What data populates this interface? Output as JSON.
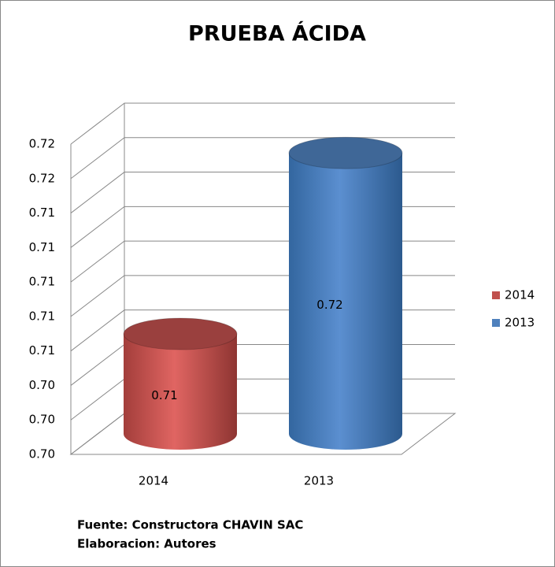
{
  "chart_data": {
    "type": "bar3d",
    "title": "PRUEBA ÁCIDA",
    "categories": [
      "2014",
      "2013"
    ],
    "series": [
      {
        "name": "2014",
        "color": "#c0504d",
        "values": [
          0.7058,
          null
        ],
        "value_labels": [
          "0.71",
          null
        ]
      },
      {
        "name": "2013",
        "color": "#4f81bd",
        "values": [
          null,
          0.7163
        ],
        "value_labels": [
          null,
          "0.72"
        ]
      }
    ],
    "ylim": [
      0.7,
      0.718
    ],
    "yticks": [
      {
        "value": 0.7,
        "label": "0.70"
      },
      {
        "value": 0.702,
        "label": "0.70"
      },
      {
        "value": 0.704,
        "label": "0.70"
      },
      {
        "value": 0.706,
        "label": "0.71"
      },
      {
        "value": 0.708,
        "label": "0.71"
      },
      {
        "value": 0.71,
        "label": "0.71"
      },
      {
        "value": 0.712,
        "label": "0.71"
      },
      {
        "value": 0.714,
        "label": "0.71"
      },
      {
        "value": 0.716,
        "label": "0.72"
      },
      {
        "value": 0.718,
        "label": "0.72"
      }
    ],
    "grid": true,
    "legend": "right",
    "source": [
      "Fuente: Constructora  CHAVIN SAC",
      "Elaboracion: Autores"
    ]
  }
}
